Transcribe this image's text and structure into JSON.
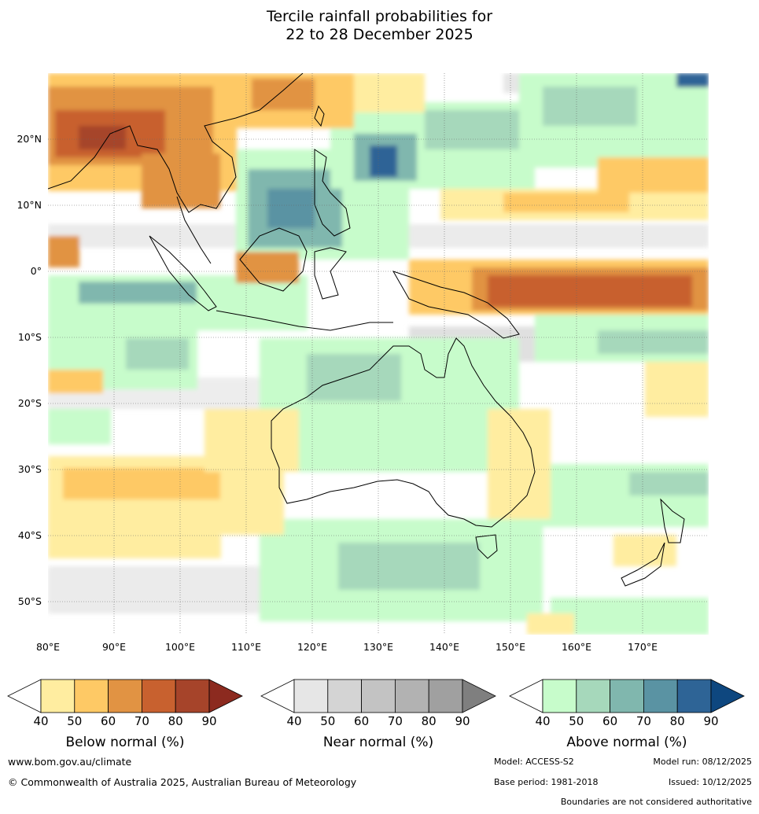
{
  "title": {
    "line1": "Tercile rainfall probabilities for",
    "line2": "22 to 28 December 2025"
  },
  "map": {
    "lon_ticks": [
      "80°E",
      "90°E",
      "100°E",
      "110°E",
      "120°E",
      "130°E",
      "140°E",
      "150°E",
      "160°E",
      "170°E"
    ],
    "lat_ticks": [
      "20°N",
      "10°N",
      "0°",
      "10°S",
      "20°S",
      "30°S",
      "40°S",
      "50°S"
    ]
  },
  "colorbars": [
    {
      "name": "below",
      "label": "Below normal (%)",
      "ticks": [
        "40",
        "50",
        "60",
        "70",
        "80",
        "90"
      ],
      "colors": [
        "#ffffff",
        "#ffeda0",
        "#fec965",
        "#e19343",
        "#c8612f",
        "#a6442a",
        "#8c2a1f"
      ]
    },
    {
      "name": "near",
      "label": "Near normal (%)",
      "ticks": [
        "40",
        "50",
        "60",
        "70",
        "80",
        "90"
      ],
      "colors": [
        "#ffffff",
        "#e6e6e6",
        "#d4d4d4",
        "#c3c3c3",
        "#b2b2b2",
        "#a0a0a0",
        "#7f7f7f"
      ]
    },
    {
      "name": "above",
      "label": "Above normal (%)",
      "ticks": [
        "40",
        "50",
        "60",
        "70",
        "80",
        "90"
      ],
      "colors": [
        "#ffffff",
        "#c7fccb",
        "#a6d8bb",
        "#80b7ae",
        "#5a93a3",
        "#2e6496",
        "#0e477f"
      ]
    }
  ],
  "footer": {
    "url": "www.bom.gov.au/climate",
    "copyright": "© Commonwealth of Australia 2025, Australian Bureau of Meteorology",
    "model": "Model: ACCESS-S2",
    "model_run": "Model run: 08/12/2025",
    "base_period": "Base period: 1981-2018",
    "issued": "Issued: 10/12/2025",
    "disclaimer": "Boundaries are not considered authoritative"
  }
}
